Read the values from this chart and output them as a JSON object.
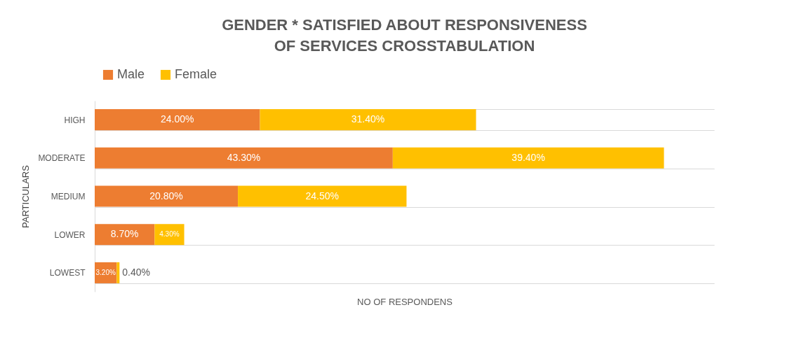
{
  "chart_data": {
    "type": "bar",
    "orientation": "horizontal",
    "stacked": true,
    "title": "GENDER * SATISFIED ABOUT RESPONSIVENESS OF SERVICES CROSSTABULATION",
    "xlabel": "NO OF RESPONDENS",
    "ylabel": "PARTICULARS",
    "categories": [
      "HIGH",
      "MODERATE",
      "MEDIUM",
      "LOWER",
      "LOWEST"
    ],
    "series": [
      {
        "name": "Male",
        "color": "#ed7d31",
        "values": [
          24.0,
          43.3,
          20.8,
          8.7,
          3.2
        ],
        "value_labels": [
          "24.00%",
          "43.30%",
          "20.80%",
          "8.70%",
          "3.20%"
        ]
      },
      {
        "name": "Female",
        "color": "#ffc000",
        "values": [
          31.4,
          39.4,
          24.5,
          4.3,
          0.4
        ],
        "value_labels": [
          "31.40%",
          "39.40%",
          "24.50%",
          "4.30%",
          "0.40%"
        ]
      }
    ],
    "legend": "top",
    "grid": "y"
  }
}
